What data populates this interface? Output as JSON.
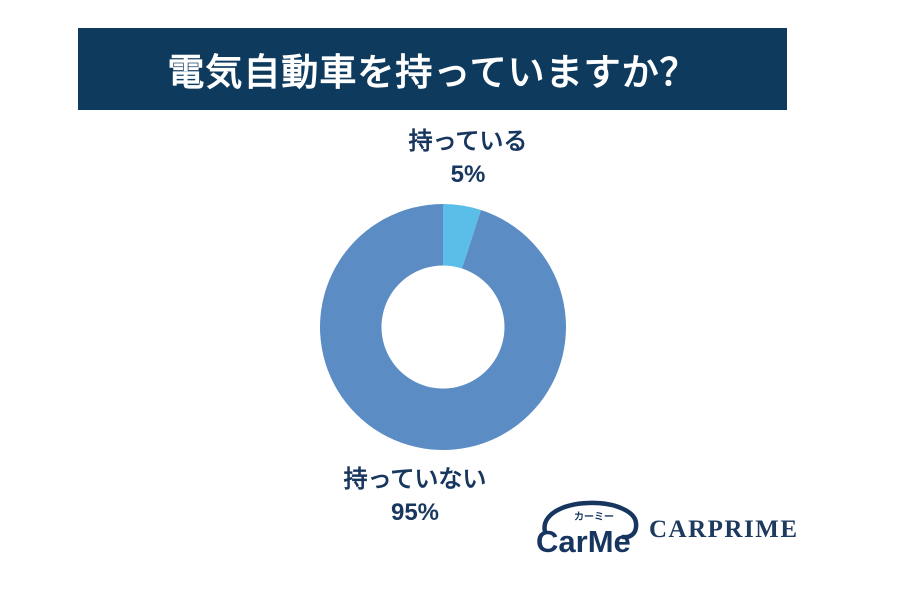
{
  "chart_data": {
    "type": "pie",
    "subtype": "donut",
    "title": "電気自動車を持っていますか？",
    "categories": [
      "持っている",
      "持っていない"
    ],
    "values": [
      5,
      95
    ],
    "value_labels": [
      "5%",
      "95%"
    ],
    "slice_colors": [
      "#5BBEE8",
      "#5B8CC3"
    ],
    "start_angle_deg": 0,
    "direction": "clockwise",
    "inner_radius_ratio": 0.5,
    "legend": "none",
    "labels_position": "outside",
    "label_color": "#17375E"
  },
  "header": {
    "bg_color": "#0E3A5E",
    "text_color": "#FFFFFF"
  },
  "footer": {
    "carme": {
      "badge": "カーミー",
      "wordmark": "CarMe",
      "color": "#16355F"
    },
    "carprime": {
      "text": "CARPRIME",
      "color": "#1E3A5F"
    }
  },
  "page": {
    "background": "#FFFFFF"
  }
}
